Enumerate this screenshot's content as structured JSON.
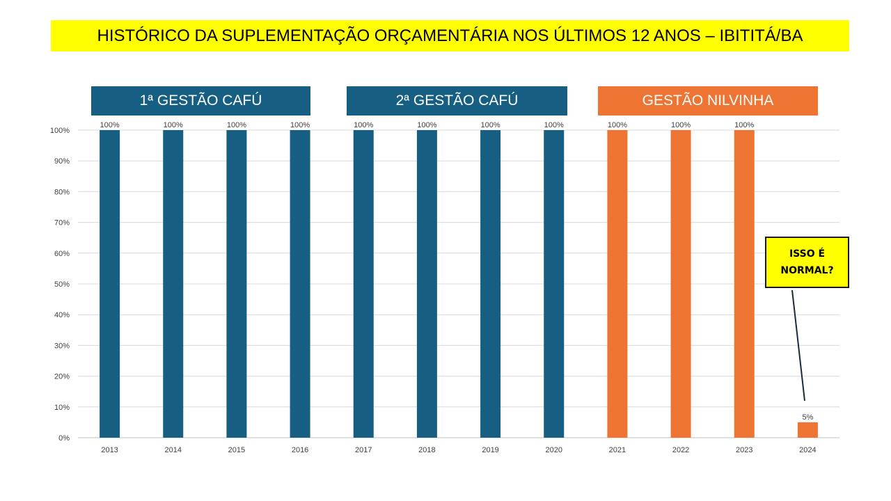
{
  "title": "HISTÓRICO DA SUPLEMENTAÇÃO  ORÇAMENTÁRIA NOS ÚLTIMOS 12 ANOS – IBITITÁ/BA",
  "gestoes": [
    {
      "label": "1ª GESTÃO CAFÚ",
      "color": "#175f82"
    },
    {
      "label": "2ª GESTÃO CAFÚ",
      "color": "#175f82"
    },
    {
      "label": "GESTÃO NILVINHA",
      "color": "#ed7432"
    }
  ],
  "callout": {
    "text": "ISSO É NORMAL?"
  },
  "chart_data": {
    "type": "bar",
    "categories": [
      "2013",
      "2014",
      "2015",
      "2016",
      "2017",
      "2018",
      "2019",
      "2020",
      "2021",
      "2022",
      "2023",
      "2024"
    ],
    "values": [
      100,
      100,
      100,
      100,
      100,
      100,
      100,
      100,
      100,
      100,
      100,
      5
    ],
    "data_labels": [
      "100%",
      "100%",
      "100%",
      "100%",
      "100%",
      "100%",
      "100%",
      "100%",
      "100%",
      "100%",
      "100%",
      "5%"
    ],
    "bar_colors": [
      "#175f82",
      "#175f82",
      "#175f82",
      "#175f82",
      "#175f82",
      "#175f82",
      "#175f82",
      "#175f82",
      "#ed7432",
      "#ed7432",
      "#ed7432",
      "#ed7432"
    ],
    "yticks": [
      "0%",
      "10%",
      "20%",
      "30%",
      "40%",
      "50%",
      "60%",
      "70%",
      "80%",
      "90%",
      "100%"
    ],
    "ylim": [
      0,
      100
    ],
    "grid": true,
    "legend": "none",
    "xlabel": "",
    "ylabel": ""
  }
}
